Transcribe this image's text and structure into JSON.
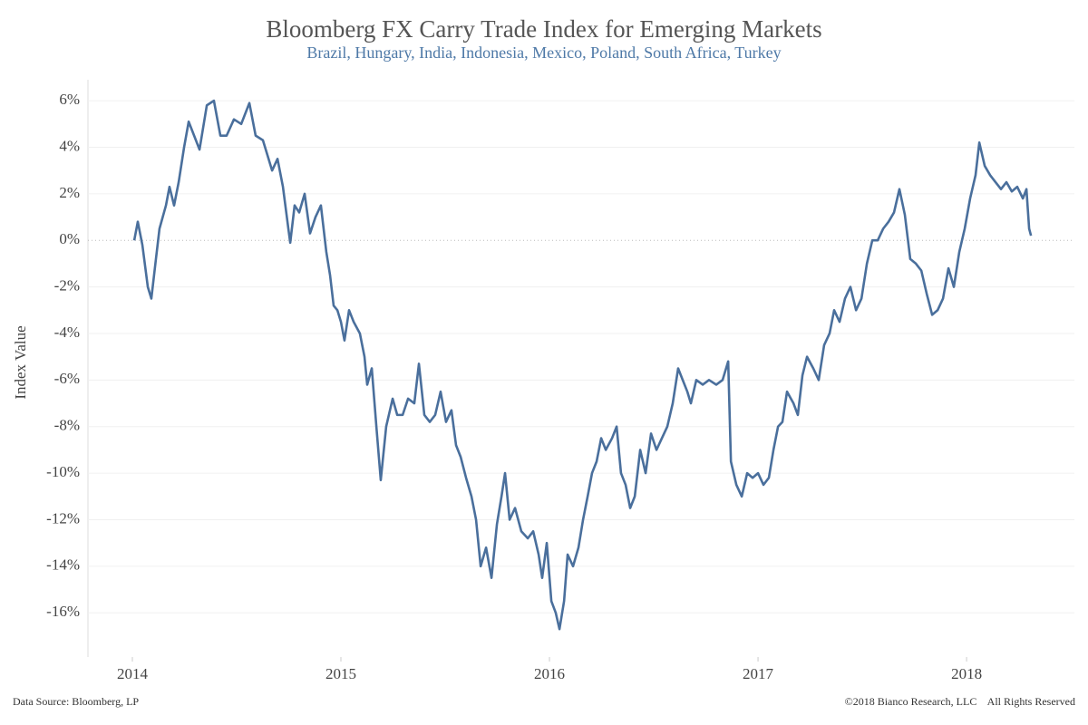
{
  "chart_data": {
    "type": "line",
    "title": "Bloomberg FX Carry Trade Index for Emerging Markets",
    "subtitle": "Brazil, Hungary, India, Indonesia, Mexico, Poland, South Africa, Turkey",
    "y_label": "Index Value",
    "source": "Data Source: Bloomberg, LP",
    "copyright": "©2018 Bianco Research, LLC    All Rights Reserved",
    "xlim": [
      2013.787,
      2018.517
    ],
    "xticks": [
      2014,
      2015,
      2016,
      2017,
      2018
    ],
    "ylim": [
      -17.9,
      6.9
    ],
    "yticks": [
      {
        "value": 6,
        "label": "6%"
      },
      {
        "value": 4,
        "label": "4%"
      },
      {
        "value": 2,
        "label": "2%"
      },
      {
        "value": 0,
        "label": "0%"
      },
      {
        "value": -2,
        "label": "-2%"
      },
      {
        "value": -4,
        "label": "-4%"
      },
      {
        "value": -6,
        "label": "-6%"
      },
      {
        "value": -8,
        "label": "-8%"
      },
      {
        "value": -10,
        "label": "-10%"
      },
      {
        "value": -12,
        "label": "-12%"
      },
      {
        "value": -14,
        "label": "-14%"
      },
      {
        "value": -16,
        "label": "-16%"
      }
    ],
    "grid": true,
    "x": [
      2014.009,
      2014.026,
      2014.048,
      2014.074,
      2014.091,
      2014.113,
      2014.13,
      2014.161,
      2014.178,
      2014.2,
      2014.222,
      2014.248,
      2014.27,
      2014.296,
      2014.322,
      2014.357,
      2014.391,
      2014.422,
      2014.452,
      2014.487,
      2014.522,
      2014.561,
      2014.591,
      2014.626,
      2014.67,
      2014.696,
      2014.722,
      2014.748,
      2014.757,
      2014.778,
      2014.8,
      2014.826,
      2014.852,
      2014.878,
      2014.904,
      2014.93,
      2014.948,
      2014.965,
      2014.983,
      2015.0,
      2015.017,
      2015.039,
      2015.061,
      2015.091,
      2015.113,
      2015.126,
      2015.148,
      2015.17,
      2015.191,
      2015.217,
      2015.248,
      2015.27,
      2015.296,
      2015.322,
      2015.352,
      2015.374,
      2015.4,
      2015.426,
      2015.452,
      2015.478,
      2015.504,
      2015.53,
      2015.552,
      2015.574,
      2015.6,
      2015.626,
      2015.648,
      2015.67,
      2015.696,
      2015.722,
      2015.748,
      2015.77,
      2015.787,
      2015.809,
      2015.835,
      2015.865,
      2015.896,
      2015.922,
      2015.948,
      2015.965,
      2015.987,
      2016.009,
      2016.03,
      2016.048,
      2016.07,
      2016.087,
      2016.113,
      2016.139,
      2016.161,
      2016.183,
      2016.204,
      2016.226,
      2016.248,
      2016.27,
      2016.3,
      2016.322,
      2016.343,
      2016.365,
      2016.387,
      2016.409,
      2016.435,
      2016.461,
      2016.487,
      2016.513,
      2016.539,
      2016.565,
      2016.591,
      2016.617,
      2016.639,
      2016.661,
      2016.678,
      2016.704,
      2016.735,
      2016.765,
      2016.8,
      2016.83,
      2016.857,
      2016.87,
      2016.896,
      2016.922,
      2016.948,
      2016.974,
      2017.0,
      2017.026,
      2017.052,
      2017.074,
      2017.096,
      2017.117,
      2017.139,
      2017.17,
      2017.191,
      2017.213,
      2017.235,
      2017.265,
      2017.291,
      2017.317,
      2017.343,
      2017.365,
      2017.391,
      2017.417,
      2017.443,
      2017.47,
      2017.496,
      2017.522,
      2017.548,
      2017.574,
      2017.6,
      2017.626,
      2017.652,
      2017.678,
      2017.704,
      2017.73,
      2017.757,
      2017.783,
      2017.809,
      2017.835,
      2017.861,
      2017.887,
      2017.913,
      2017.939,
      2017.965,
      2017.991,
      2018.017,
      2018.043,
      2018.061,
      2018.087,
      2018.113,
      2018.139,
      2018.165,
      2018.191,
      2018.217,
      2018.243,
      2018.27,
      2018.287,
      2018.3,
      2018.309
    ],
    "series": [
      {
        "name": "Index Value",
        "color": "#4a6f9c",
        "values": [
          0,
          0.8,
          -0.2,
          -2,
          -2.5,
          -0.8,
          0.5,
          1.5,
          2.3,
          1.5,
          2.5,
          4,
          5.1,
          4.5,
          3.9,
          5.8,
          6,
          4.5,
          4.5,
          5.2,
          5,
          5.9,
          4.5,
          4.3,
          3,
          3.5,
          2.3,
          0.5,
          -0.1,
          1.5,
          1.2,
          2,
          0.3,
          1,
          1.5,
          -0.5,
          -1.5,
          -2.8,
          -3,
          -3.5,
          -4.3,
          -3,
          -3.5,
          -4,
          -5,
          -6.2,
          -5.5,
          -8,
          -10.3,
          -8,
          -6.8,
          -7.5,
          -7.5,
          -6.8,
          -7,
          -5.3,
          -7.5,
          -7.8,
          -7.5,
          -6.5,
          -7.8,
          -7.3,
          -8.8,
          -9.3,
          -10.2,
          -11,
          -12,
          -14,
          -13.2,
          -14.5,
          -12.2,
          -11,
          -10,
          -12,
          -11.5,
          -12.5,
          -12.8,
          -12.5,
          -13.5,
          -14.5,
          -13,
          -15.5,
          -16,
          -16.7,
          -15.5,
          -13.5,
          -14,
          -13.2,
          -12,
          -11,
          -10,
          -9.5,
          -8.5,
          -9,
          -8.5,
          -8,
          -10,
          -10.5,
          -11.5,
          -11,
          -9,
          -10,
          -8.3,
          -9,
          -8.5,
          -8,
          -7,
          -5.5,
          -6,
          -6.5,
          -7,
          -6,
          -6.2,
          -6,
          -6.2,
          -6,
          -5.2,
          -9.5,
          -10.5,
          -11,
          -10,
          -10.2,
          -10,
          -10.5,
          -10.2,
          -9,
          -8,
          -7.8,
          -6.5,
          -7,
          -7.5,
          -5.8,
          -5,
          -5.5,
          -6,
          -4.5,
          -4,
          -3,
          -3.5,
          -2.5,
          -2,
          -3,
          -2.5,
          -1,
          0,
          0,
          0.5,
          0.8,
          1.2,
          2.2,
          1.1,
          -0.8,
          -1,
          -1.3,
          -2.3,
          -3.2,
          -3,
          -2.5,
          -1.2,
          -2,
          -0.5,
          0.5,
          1.8,
          2.8,
          4.2,
          3.2,
          2.8,
          2.5,
          2.2,
          2.5,
          2.1,
          2.3,
          1.8,
          2.2,
          0.5,
          0.2
        ]
      }
    ]
  }
}
